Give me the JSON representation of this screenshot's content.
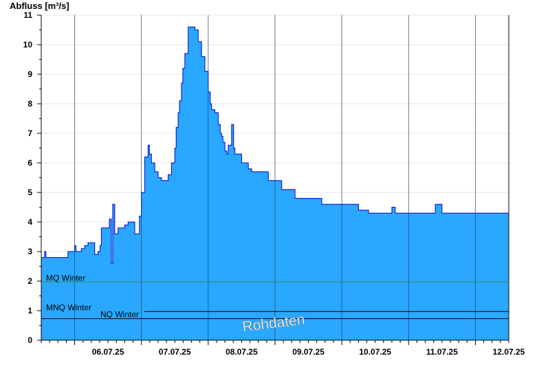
{
  "chart_data": {
    "type": "area",
    "ylabel": "Abfluss [m³/s]",
    "xlabel": "",
    "title": "",
    "ylim": [
      0,
      11
    ],
    "yticks": [
      0,
      1,
      2,
      3,
      4,
      5,
      6,
      7,
      8,
      9,
      10,
      11
    ],
    "xlim": [
      5.5,
      12.5
    ],
    "day_boundaries": [
      6,
      7,
      8,
      9,
      10,
      11,
      12
    ],
    "x_tick_labels": [
      "06.07.25",
      "07.07.25",
      "08.07.25",
      "09.07.25",
      "10.07.25",
      "11.07.25",
      "12.07.25"
    ],
    "grid": "horizontal",
    "colors": {
      "fill": "#2aa8ff",
      "line": "#0000d0",
      "mq_line": "#2e8b57",
      "ref_line": "#000000",
      "grid": "#e6e6e6"
    },
    "reference_lines": [
      {
        "label": "MQ Winter",
        "value": 1.97
      },
      {
        "label": "MNQ Winter",
        "value": 0.97
      },
      {
        "label": "NQ Winter",
        "value": 0.73
      }
    ],
    "watermark": "Rohdaten",
    "series": [
      {
        "x": [
          5.5,
          5.55,
          5.57,
          5.6,
          5.7,
          5.8,
          5.9,
          6.0,
          6.02,
          6.04,
          6.06,
          6.1,
          6.15,
          6.2,
          6.3,
          6.35,
          6.38,
          6.4,
          6.45,
          6.5,
          6.52,
          6.55,
          6.57,
          6.6,
          6.65,
          6.7,
          6.75,
          6.8,
          6.9,
          6.95,
          6.97,
          7.0,
          7.05,
          7.1,
          7.12,
          7.15,
          7.2,
          7.25,
          7.3,
          7.35,
          7.4,
          7.45,
          7.5,
          7.52,
          7.55,
          7.57,
          7.6,
          7.62,
          7.65,
          7.7,
          7.8,
          7.85,
          7.9,
          7.95,
          8.0,
          8.03,
          8.05,
          8.1,
          8.15,
          8.18,
          8.2,
          8.22,
          8.25,
          8.28,
          8.3,
          8.32,
          8.35,
          8.38,
          8.4,
          8.42,
          8.45,
          8.5,
          8.55,
          8.6,
          8.65,
          8.7,
          8.75,
          8.8,
          8.85,
          8.9,
          8.92,
          8.95,
          9.0,
          9.05,
          9.1,
          9.15,
          9.2,
          9.25,
          9.3,
          9.35,
          9.4,
          9.5,
          9.6,
          9.7,
          9.8,
          9.9,
          10.0,
          10.1,
          10.15,
          10.2,
          10.25,
          10.3,
          10.4,
          10.5,
          10.6,
          10.7,
          10.75,
          10.8,
          10.9,
          11.0,
          11.1,
          11.2,
          11.3,
          11.4,
          11.5,
          11.6,
          11.7,
          11.75,
          11.8,
          11.85,
          11.9,
          12.0,
          12.1,
          12.2,
          12.3,
          12.4,
          12.5
        ],
        "values": [
          2.8,
          3.0,
          2.8,
          2.8,
          2.8,
          2.8,
          3.0,
          3.2,
          3.0,
          3.0,
          3.0,
          3.1,
          3.2,
          3.3,
          2.9,
          3.0,
          3.2,
          3.8,
          3.8,
          3.8,
          4.1,
          2.6,
          4.6,
          3.6,
          3.8,
          3.8,
          3.9,
          4.0,
          3.6,
          3.6,
          4.2,
          5.0,
          6.2,
          6.6,
          6.3,
          6.0,
          5.7,
          5.5,
          5.4,
          5.4,
          5.6,
          6.0,
          6.5,
          7.2,
          7.7,
          8.1,
          8.7,
          9.2,
          9.7,
          10.6,
          10.5,
          10.1,
          9.6,
          9.1,
          8.4,
          8.0,
          7.8,
          7.7,
          7.3,
          7.0,
          6.9,
          6.7,
          6.4,
          6.3,
          6.6,
          6.6,
          7.3,
          6.5,
          6.3,
          6.3,
          6.3,
          6.0,
          6.0,
          5.8,
          5.7,
          5.7,
          5.7,
          5.7,
          5.7,
          5.4,
          5.4,
          5.4,
          5.4,
          5.4,
          5.1,
          5.1,
          5.1,
          5.1,
          4.8,
          4.8,
          4.8,
          4.8,
          4.8,
          4.6,
          4.6,
          4.6,
          4.6,
          4.6,
          4.6,
          4.6,
          4.4,
          4.4,
          4.3,
          4.3,
          4.3,
          4.3,
          4.5,
          4.3,
          4.3,
          4.3,
          4.3,
          4.3,
          4.3,
          4.6,
          4.3,
          4.3,
          4.3,
          4.3,
          4.3,
          4.3,
          4.3,
          4.3,
          4.3,
          4.3,
          4.3,
          4.3,
          4.3
        ]
      }
    ]
  }
}
